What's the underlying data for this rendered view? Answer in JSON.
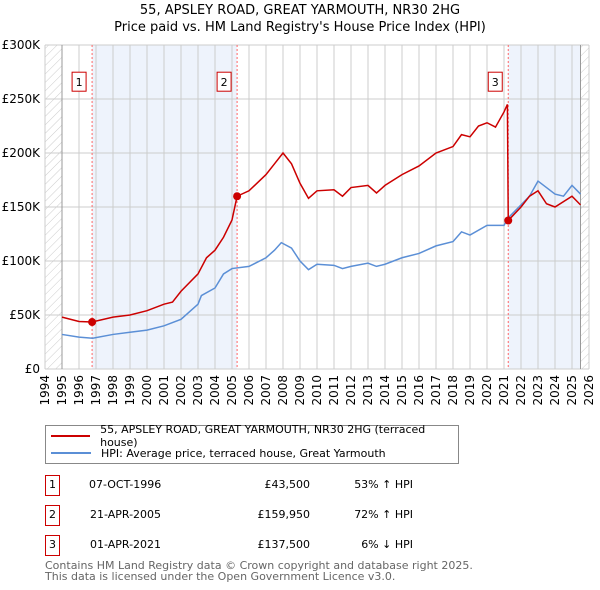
{
  "title_line1": "55, APSLEY ROAD, GREAT YARMOUTH, NR30 2HG",
  "title_line2": "Price paid vs. HM Land Registry's House Price Index (HPI)",
  "chart_data": {
    "type": "line",
    "title": "55, APSLEY ROAD, GREAT YARMOUTH, NR30 2HG - Price paid vs. HM Land Registry's House Price Index (HPI)",
    "xlim": [
      1994,
      2026
    ],
    "ylim": [
      0,
      300000
    ],
    "x_ticks": [
      "1994",
      "1995",
      "1996",
      "1997",
      "1998",
      "1999",
      "2000",
      "2001",
      "2002",
      "2003",
      "2004",
      "2005",
      "2006",
      "2007",
      "2008",
      "2009",
      "2010",
      "2011",
      "2012",
      "2013",
      "2014",
      "2015",
      "2016",
      "2017",
      "2018",
      "2019",
      "2020",
      "2021",
      "2022",
      "2023",
      "2024",
      "2025",
      "2026"
    ],
    "y_ticks": [
      {
        "v": 0,
        "label": "£0"
      },
      {
        "v": 50000,
        "label": "£50K"
      },
      {
        "v": 100000,
        "label": "£100K"
      },
      {
        "v": 150000,
        "label": "£150K"
      },
      {
        "v": 200000,
        "label": "£200K"
      },
      {
        "v": 250000,
        "label": "£250K"
      },
      {
        "v": 300000,
        "label": "£300K"
      }
    ],
    "grid": true,
    "shaded_ranges": [
      [
        1996.77,
        2005.3
      ],
      [
        2021.25,
        2025.5
      ]
    ],
    "hatched_ranges": [
      [
        1994,
        1995
      ],
      [
        2025.5,
        2026
      ]
    ],
    "series": [
      {
        "name": "55, APSLEY ROAD, GREAT YARMOUTH, NR30 2HG (terraced house)",
        "color": "#cc0000",
        "x": [
          1995,
          1996,
          1996.77,
          1998,
          1999,
          2000,
          2001,
          2001.5,
          2002,
          2003,
          2003.5,
          2004,
          2004.5,
          2005,
          2005.3,
          2006,
          2007,
          2007.5,
          2008,
          2008.5,
          2009,
          2009.5,
          2010,
          2011,
          2011.5,
          2012,
          2013,
          2013.5,
          2014,
          2015,
          2016,
          2017,
          2018,
          2018.5,
          2019,
          2019.5,
          2020,
          2020.5,
          2021,
          2021.2,
          2021.25,
          2022,
          2022.5,
          2023,
          2023.5,
          2024,
          2025,
          2025.5
        ],
        "y": [
          48000,
          44000,
          43500,
          48000,
          50000,
          54000,
          60000,
          62000,
          72000,
          88000,
          103000,
          110000,
          122000,
          138000,
          159950,
          165000,
          180000,
          190000,
          200000,
          190000,
          172000,
          158000,
          165000,
          166000,
          160000,
          168000,
          170000,
          163000,
          170000,
          180000,
          188000,
          200000,
          206000,
          217000,
          215000,
          225000,
          228000,
          224000,
          238000,
          245000,
          137500,
          150000,
          160000,
          165000,
          153000,
          150000,
          160000,
          152000
        ]
      },
      {
        "name": "HPI: Average price, terraced house, Great Yarmouth",
        "color": "#5b8fd6",
        "x": [
          1995,
          1996,
          1996.8,
          1998,
          1999,
          2000,
          2001,
          2002,
          2003,
          2003.2,
          2004,
          2004.5,
          2005,
          2006,
          2007,
          2007.5,
          2007.9,
          2008.5,
          2009,
          2009.5,
          2010,
          2011,
          2011.5,
          2012,
          2013,
          2013.5,
          2014,
          2015,
          2016,
          2017,
          2018,
          2018.5,
          2019,
          2020,
          2020.5,
          2021,
          2021.25,
          2022,
          2022.5,
          2023,
          2023.5,
          2024,
          2024.5,
          2025,
          2025.5
        ],
        "y": [
          32000,
          29500,
          28500,
          32000,
          34000,
          36000,
          40000,
          46000,
          60000,
          68000,
          75000,
          88000,
          93000,
          95000,
          103000,
          110000,
          117000,
          112000,
          100000,
          92000,
          97000,
          96000,
          93000,
          95000,
          98000,
          95000,
          97000,
          103000,
          107000,
          114000,
          118000,
          127000,
          124000,
          133000,
          133000,
          133000,
          140000,
          152000,
          160000,
          174000,
          168000,
          162000,
          160000,
          170000,
          162000
        ]
      }
    ],
    "sales": [
      {
        "n": "1",
        "x": 1996.77,
        "y": 43500
      },
      {
        "n": "2",
        "x": 2005.3,
        "y": 159950
      },
      {
        "n": "3",
        "x": 2021.25,
        "y": 137500
      }
    ]
  },
  "legend": {
    "property": "55, APSLEY ROAD, GREAT YARMOUTH, NR30 2HG (terraced house)",
    "hpi": "HPI: Average price, terraced house, Great Yarmouth"
  },
  "sales_table": [
    {
      "n": "1",
      "date": "07-OCT-1996",
      "price": "£43,500",
      "hpi": "53% ↑ HPI"
    },
    {
      "n": "2",
      "date": "21-APR-2005",
      "price": "£159,950",
      "hpi": "72% ↑ HPI"
    },
    {
      "n": "3",
      "date": "01-APR-2021",
      "price": "£137,500",
      "hpi": "6% ↓ HPI"
    }
  ],
  "footer": {
    "line1": "Contains HM Land Registry data © Crown copyright and database right 2025.",
    "line2": "This data is licensed under the Open Government Licence v3.0."
  }
}
